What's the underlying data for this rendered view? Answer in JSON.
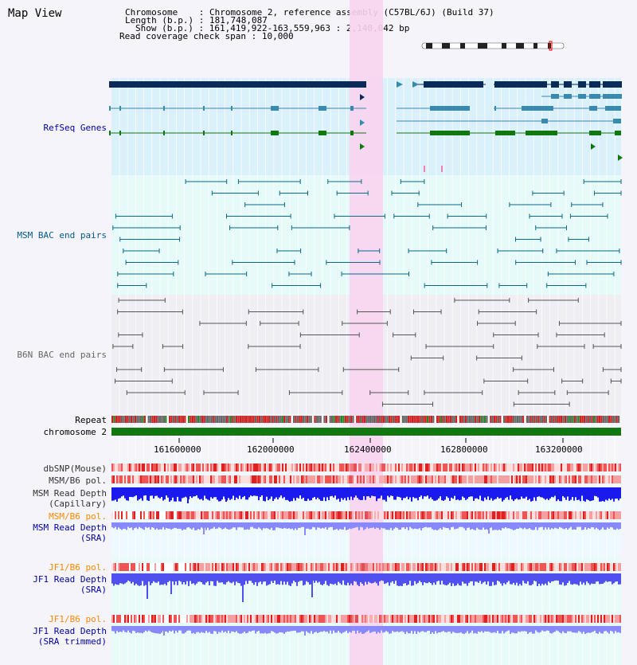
{
  "header": {
    "title": "Map View",
    "chromosome_label": "Chromosome",
    "chromosome_value": "Chromosome 2, reference assembly (C57BL/6J) (Build 37)",
    "length_label": "Length (b.p.)",
    "length_value": "181,748,087",
    "show_label": "Show (b.p.)",
    "show_value": "161,419,922-163,559,963 : 2,140,042 bp",
    "coverage_label": "Read coverage check span",
    "coverage_value": "10,000"
  },
  "tracks": {
    "refseq": "RefSeq Genes",
    "msm_bac": "MSM BAC end pairs",
    "b6n_bac": "B6N BAC end pairs",
    "repeat": "Repeat",
    "chromosome": "chromosome 2",
    "dbsnp": "dbSNP(Mouse)",
    "msm_b6_pol_1": "MSM/B6 pol.",
    "msm_read_depth_cap_1": "MSM Read Depth",
    "msm_read_depth_cap_2": "(Capillary)",
    "msm_b6_pol_2": "MSM/B6 pol.",
    "msm_read_depth_sra_1": "MSM Read Depth",
    "msm_read_depth_sra_2": "(SRA)",
    "jf1_b6_pol_1": "JF1/B6 pol.",
    "jf1_read_depth_sra_1": "JF1 Read Depth",
    "jf1_read_depth_sra_2": "(SRA)",
    "jf1_b6_pol_2": "JF1/B6 pol.",
    "jf1_read_depth_trim_1": "JF1 Read Depth",
    "jf1_read_depth_trim_2": "(SRA trimmed)"
  },
  "axis": {
    "ticks": [
      "161600000",
      "162000000",
      "162400000",
      "162800000",
      "163200000"
    ]
  },
  "colors": {
    "refseq_label": "#0000aa",
    "msm_bac_label": "#005b8a",
    "b6n_bac_label": "#666666",
    "pol_label": "#ff8800",
    "depth_label": "#0000aa",
    "highlight": "#f8d4f0",
    "gene_dark": "#0a2a5a",
    "gene_mid": "#3a8ab0",
    "gene_green": "#117711"
  }
}
